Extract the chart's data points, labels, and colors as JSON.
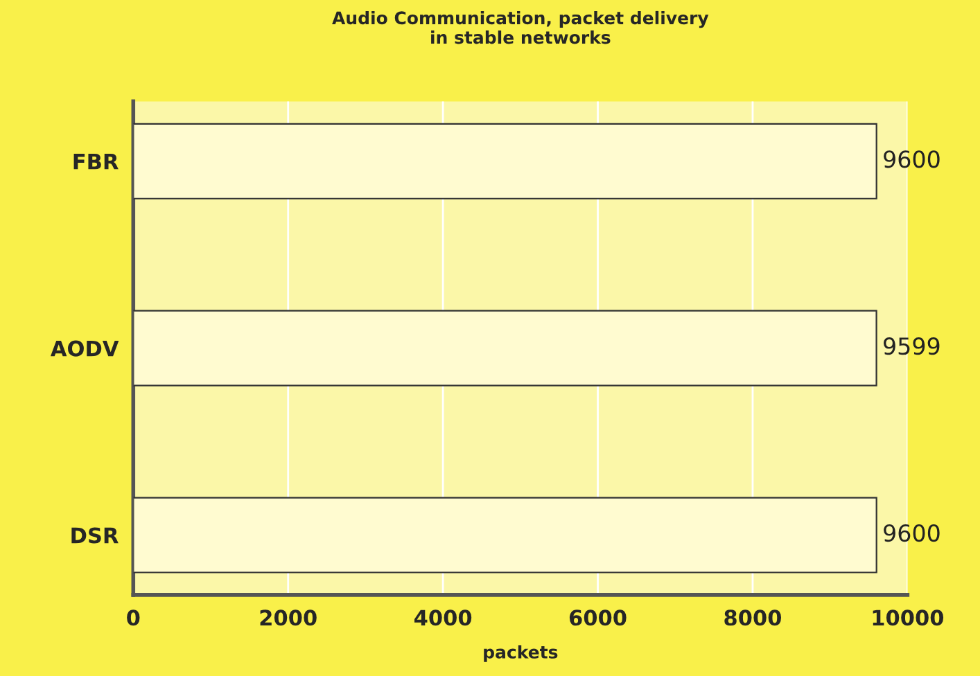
{
  "chart_data": {
    "type": "bar",
    "orientation": "horizontal",
    "title": "Audio Communication, packet delivery\nin stable networks",
    "xlabel": "packets",
    "categories": [
      "FBR",
      "AODV",
      "DSR"
    ],
    "values": [
      9600,
      9599,
      9600
    ],
    "color": "#fffbd0",
    "xlim": [
      0,
      10000
    ],
    "xticks": [
      0,
      2000,
      4000,
      6000,
      8000,
      10000
    ],
    "grid": "x",
    "data_labels": true
  }
}
